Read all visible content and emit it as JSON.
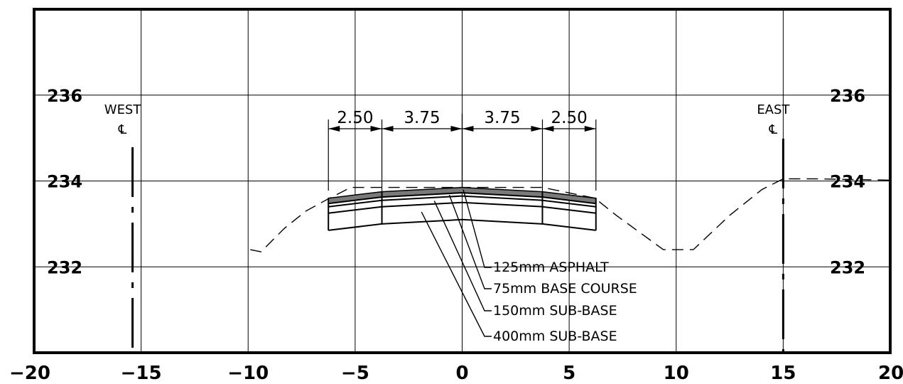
{
  "x_axis": {
    "range": [
      -20,
      20
    ],
    "ticks": [
      {
        "value": -20,
        "label": "−20"
      },
      {
        "value": -15,
        "label": "−15"
      },
      {
        "value": -10,
        "label": "−10"
      },
      {
        "value": -5,
        "label": "−5"
      },
      {
        "value": 0,
        "label": "0"
      },
      {
        "value": 5,
        "label": "5"
      },
      {
        "value": 10,
        "label": "10"
      },
      {
        "value": 15,
        "label": "15"
      },
      {
        "value": 20,
        "label": "20"
      }
    ]
  },
  "y_axis": {
    "range": [
      230,
      238
    ],
    "ticks": [
      {
        "value": 236,
        "label": "236"
      },
      {
        "value": 234,
        "label": "234"
      },
      {
        "value": 232,
        "label": "232"
      }
    ]
  },
  "grid": true,
  "property_lines": [
    {
      "id": "west",
      "label": "WEST",
      "symbol": "℄",
      "x": -15.4
    },
    {
      "id": "east",
      "label": "EAST",
      "symbol": "℄",
      "x": 15.0
    }
  ],
  "dimensions": [
    {
      "id": "dim-1",
      "label": "2.50",
      "from": -6.25,
      "to": -3.75
    },
    {
      "id": "dim-2",
      "label": "3.75",
      "from": -3.75,
      "to": 0
    },
    {
      "id": "dim-3",
      "label": "3.75",
      "from": 0,
      "to": 3.75
    },
    {
      "id": "dim-4",
      "label": "2.50",
      "from": 3.75,
      "to": 6.25
    }
  ],
  "pavement_layers": [
    {
      "id": "asphalt",
      "label": "125mm ASPHALT",
      "thickness_m": 0.125
    },
    {
      "id": "base-course",
      "label": "75mm BASE COURSE",
      "thickness_m": 0.075
    },
    {
      "id": "sub-base-150",
      "label": "150mm SUB-BASE",
      "thickness_m": 0.15
    },
    {
      "id": "sub-base-400",
      "label": "400mm SUB-BASE",
      "thickness_m": 0.4
    }
  ],
  "crown_elevation": 233.85,
  "edge_elevation": 233.6,
  "existing_ground": [
    [
      -9.9,
      232.4
    ],
    [
      -9.4,
      232.35
    ],
    [
      -8.3,
      232.9
    ],
    [
      -7.3,
      233.3
    ],
    [
      -6.2,
      233.6
    ],
    [
      -5.2,
      233.85
    ],
    [
      -3.7,
      233.85
    ],
    [
      0,
      233.85
    ],
    [
      3.75,
      233.85
    ],
    [
      6.2,
      233.6
    ],
    [
      7.2,
      233.2
    ],
    [
      8.3,
      232.8
    ],
    [
      9.4,
      232.4
    ],
    [
      10.8,
      232.4
    ],
    [
      12.5,
      233.2
    ],
    [
      14.0,
      233.8
    ],
    [
      15.0,
      234.05
    ],
    [
      16.5,
      234.05
    ],
    [
      20,
      234.02
    ]
  ],
  "colors": {
    "asphalt": "#7a7a7a",
    "line": "#000000",
    "grid": "#000000"
  }
}
